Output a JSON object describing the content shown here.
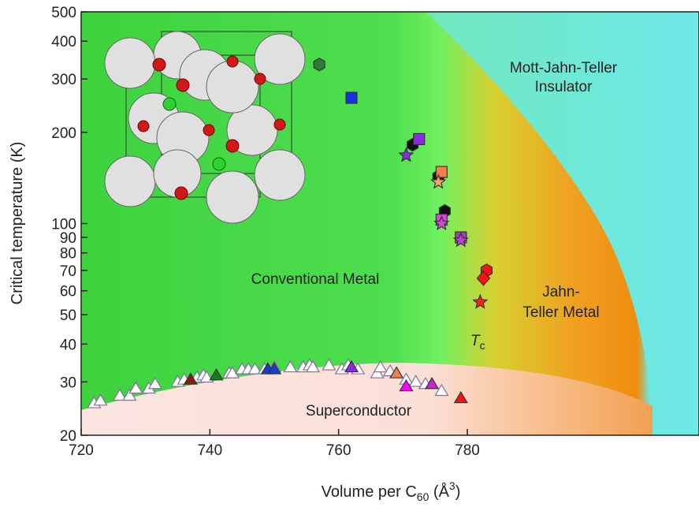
{
  "chart_data": {
    "type": "scatter",
    "yscale": "log",
    "xlim": [
      720,
      816
    ],
    "ylim": [
      20,
      500
    ],
    "xticks": [
      720,
      740,
      760,
      780
    ],
    "yticks": [
      20,
      30,
      40,
      50,
      60,
      70,
      80,
      90,
      100,
      200,
      300,
      400,
      500
    ],
    "xlabel": [
      "Volume per C",
      "60",
      " (Å",
      "3",
      ")"
    ],
    "ylabel": "Critical temperature (K)",
    "annotations": [
      {
        "lines": [
          "Mott-Jahn-Teller",
          "Insulator"
        ]
      },
      {
        "lines": [
          "Conventional Metal"
        ]
      },
      {
        "lines": [
          "Jahn-",
          "Teller Metal"
        ]
      },
      {
        "lines": [
          "Superconductor"
        ]
      },
      {
        "lines": [
          "T",
          "c"
        ]
      }
    ],
    "series": [
      {
        "marker": "open-triangle",
        "color": "#ffffff",
        "x": [
          722,
          723,
          726,
          727.5,
          728.5,
          730.5,
          731.5,
          735,
          736,
          738,
          739,
          739.5,
          743,
          743.5,
          745,
          746,
          747,
          748.5,
          750,
          752.5,
          754.5,
          755.5,
          756,
          758.5,
          760.5,
          761.5,
          763,
          766,
          766.5,
          768,
          770.5,
          772,
          773.5,
          776
        ],
        "values": [
          25.5,
          26,
          27,
          27,
          28.5,
          28.5,
          29.5,
          30,
          30.5,
          31,
          31.5,
          31,
          32,
          32,
          33,
          33,
          33,
          33,
          33.5,
          33.5,
          33.5,
          34,
          33.5,
          34,
          33,
          34,
          33,
          32,
          33.5,
          32.5,
          30.5,
          30,
          29.5,
          28
        ]
      },
      {
        "marker": "triangle",
        "x": [
          737,
          741,
          749,
          750,
          762,
          769,
          770.5,
          774.5,
          779
        ],
        "values": [
          30.5,
          31.5,
          33,
          33,
          33.5,
          32,
          29,
          29.5,
          26.5
        ],
        "colors": [
          "#8b1a1a",
          "#1f7a1f",
          "#1a3bd6",
          "#1a3bd6",
          "#8a2be2",
          "#f08050",
          "#ff00ff",
          "#d020d0",
          "#ff1010"
        ]
      },
      {
        "marker": "hexagon",
        "x": [
          757,
          771.5,
          775.5,
          776.5,
          783
        ],
        "values": [
          335,
          182,
          143,
          110,
          70
        ],
        "colors": [
          "#2e7d32",
          "#111111",
          "#111111",
          "#111111",
          "#ff1010"
        ]
      },
      {
        "marker": "square",
        "x": [
          762,
          772.5,
          776,
          776,
          779
        ],
        "values": [
          260,
          190,
          148,
          103,
          90
        ],
        "colors": [
          "#1433e0",
          "#8a2be2",
          "#f08050",
          "#e040e0",
          "#9a40c0"
        ]
      },
      {
        "marker": "star",
        "x": [
          770.5,
          775.5,
          776,
          779,
          782
        ],
        "values": [
          168,
          137,
          100,
          88,
          55
        ],
        "colors": [
          "#8a2be2",
          "#f4a460",
          "#e040e0",
          "#c040d0",
          "#ff2020"
        ]
      },
      {
        "marker": "diamond",
        "x": [
          782.5
        ],
        "values": [
          66
        ],
        "colors": [
          "#ff1010"
        ]
      }
    ]
  }
}
